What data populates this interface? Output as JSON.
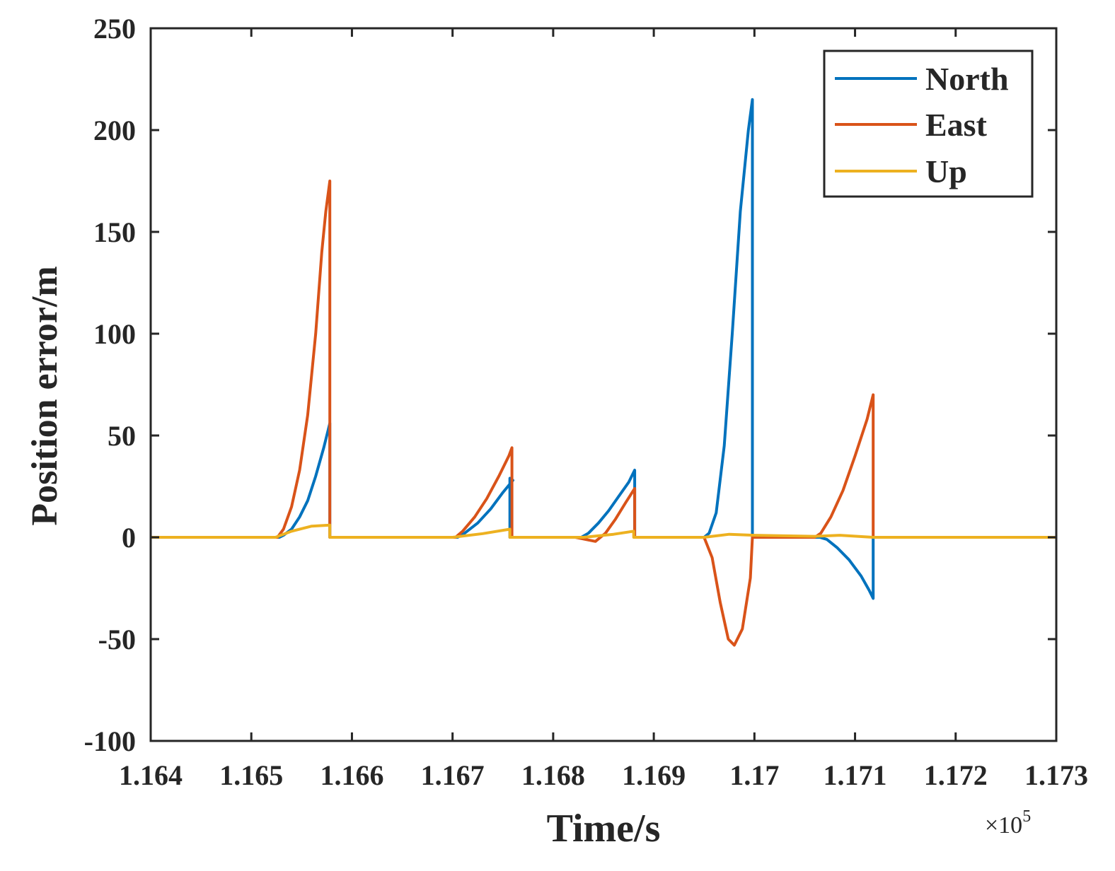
{
  "chart_data": {
    "type": "line",
    "title": "",
    "xlabel": "Time/s",
    "ylabel": "Position error/m",
    "x_multiplier_label": "×10",
    "x_multiplier_exponent": "5",
    "xlim": [
      1.164,
      1.173
    ],
    "ylim": [
      -100,
      250
    ],
    "xticks": [
      "1.164",
      "1.165",
      "1.166",
      "1.167",
      "1.168",
      "1.169",
      "1.17",
      "1.171",
      "1.172",
      "1.173"
    ],
    "xtick_values": [
      1.164,
      1.165,
      1.166,
      1.167,
      1.168,
      1.169,
      1.17,
      1.171,
      1.172,
      1.173
    ],
    "yticks": [
      "-100",
      "-50",
      "0",
      "50",
      "100",
      "150",
      "200",
      "250"
    ],
    "ytick_values": [
      -100,
      -50,
      0,
      50,
      100,
      150,
      200,
      250
    ],
    "grid": false,
    "legend_position": "top-right",
    "series": [
      {
        "name": "North",
        "color": "#0072BD",
        "x": [
          1.164,
          1.16528,
          1.16532,
          1.1654,
          1.16548,
          1.16556,
          1.16564,
          1.16572,
          1.16578,
          1.16578,
          1.16705,
          1.16712,
          1.16725,
          1.16738,
          1.1675,
          1.1676,
          1.16757,
          1.16757,
          1.16828,
          1.16835,
          1.16845,
          1.16855,
          1.16865,
          1.16875,
          1.16881,
          1.16881,
          1.1695,
          1.16955,
          1.16962,
          1.1697,
          1.16978,
          1.16986,
          1.16994,
          1.16998,
          1.16998,
          1.17065,
          1.17072,
          1.17082,
          1.17094,
          1.17106,
          1.17114,
          1.17118,
          1.17118,
          1.173
        ],
        "y": [
          0,
          0,
          1,
          4,
          10,
          18,
          30,
          44,
          56,
          0,
          0,
          2,
          7,
          14,
          22,
          28,
          29,
          0,
          0,
          2,
          7,
          13,
          20,
          27,
          33,
          0,
          0,
          2,
          12,
          45,
          100,
          160,
          200,
          215,
          0,
          0,
          -1,
          -5,
          -11,
          -19,
          -26,
          -30,
          0,
          0
        ]
      },
      {
        "name": "East",
        "color": "#D95319",
        "x": [
          1.164,
          1.16526,
          1.16532,
          1.1654,
          1.16548,
          1.16556,
          1.16564,
          1.1657,
          1.16574,
          1.16578,
          1.16578,
          1.16703,
          1.1671,
          1.16722,
          1.16734,
          1.16746,
          1.16756,
          1.16759,
          1.16759,
          1.16822,
          1.16832,
          1.16842,
          1.16852,
          1.16862,
          1.16872,
          1.16881,
          1.16881,
          1.1695,
          1.16958,
          1.16966,
          1.16974,
          1.1698,
          1.16988,
          1.16996,
          1.16998,
          1.1706,
          1.17066,
          1.17076,
          1.17088,
          1.171,
          1.17112,
          1.17118,
          1.17118,
          1.173
        ],
        "y": [
          0,
          0,
          4,
          15,
          33,
          60,
          100,
          140,
          160,
          175,
          0,
          0,
          3,
          10,
          19,
          30,
          40,
          44,
          0,
          0,
          -1,
          -2,
          2,
          9,
          17,
          24,
          0,
          0,
          -10,
          -32,
          -50,
          -53,
          -45,
          -20,
          0,
          0,
          2,
          10,
          23,
          40,
          58,
          70,
          0,
          0
        ]
      },
      {
        "name": "Up",
        "color": "#EDB120",
        "x": [
          1.164,
          1.16524,
          1.1654,
          1.1656,
          1.16578,
          1.16578,
          1.167,
          1.1673,
          1.16757,
          1.16757,
          1.1683,
          1.1686,
          1.1688,
          1.1688,
          1.1695,
          1.16975,
          1.17,
          1.1706,
          1.17085,
          1.17118,
          1.173
        ],
        "y": [
          0,
          0,
          3,
          5.5,
          6,
          0,
          0,
          1.8,
          4,
          0,
          0,
          1.5,
          3,
          0,
          0,
          1.5,
          1,
          0.5,
          1,
          0,
          0
        ]
      }
    ]
  }
}
